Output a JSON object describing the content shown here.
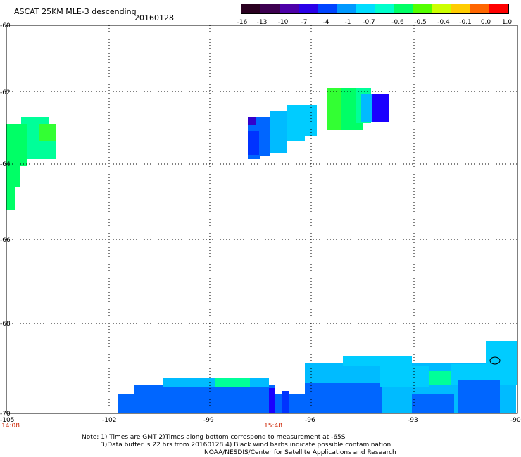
{
  "title": "ASCAT 25KM MLE-3 descending",
  "date": "20160128",
  "colorbar": {
    "labels": [
      "-16",
      "-13",
      "-10",
      "-7",
      "-4",
      "-1",
      "-0.7",
      "-0.6",
      "-0.5",
      "-0.4",
      "-0.1",
      "0.0",
      "1.0"
    ],
    "colors": [
      "#2a0020",
      "#3d0050",
      "#4d00a8",
      "#2a00e8",
      "#0044ff",
      "#0099ff",
      "#00ddff",
      "#00ffcc",
      "#00ff66",
      "#55ff00",
      "#ccff00",
      "#ffcc00",
      "#ff6600",
      "#ff0000"
    ]
  },
  "axes": {
    "lat_labels": [
      "-60",
      "-62",
      "-64",
      "-66",
      "-68",
      "-70"
    ],
    "lon_labels": [
      "-105",
      "-102",
      "-99",
      "-96",
      "-93",
      "-90"
    ]
  },
  "times": [
    "14:08",
    "15:48"
  ],
  "notes": [
    "Note: 1) Times are GMT 2)Times along bottom correspond to measurement at -65S",
    "3)Data buffer is 22 hrs from 20160128 4) Black wind barbs indicate possible contamination",
    "NOAA/NESDIS/Center for Satellite Applications and Research"
  ],
  "swath_colors": {
    "green": "#00ff66",
    "green2": "#00ff99",
    "lime": "#33ff33",
    "cyan": "#00ccff",
    "lightblue": "#00bbff",
    "blue": "#0066ff",
    "darkblue": "#0033ff",
    "navy": "#1a00ff",
    "purple": "#3300cc"
  }
}
